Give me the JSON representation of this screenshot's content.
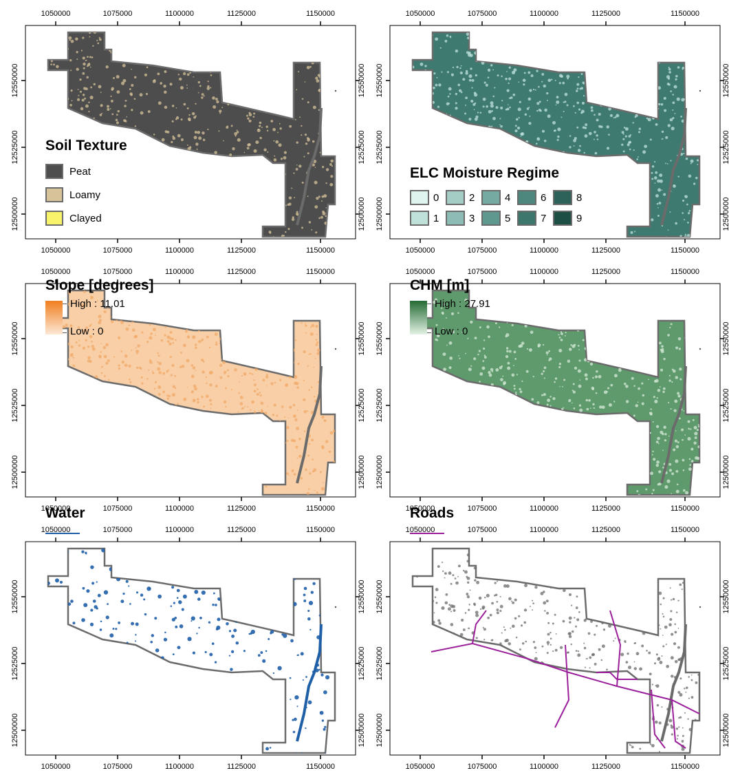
{
  "x_ticks": [
    "1050000",
    "1075000",
    "1100000",
    "1125000",
    "1150000"
  ],
  "y_ticks": [
    "12550000",
    "12525000",
    "12500000"
  ],
  "colors": {
    "boundary": "#6b6b6b",
    "water_line": "#1f5fa8",
    "roads_line": "#9b1f9b"
  },
  "panels": [
    {
      "id": "soil",
      "legend_type": "swatches",
      "title": "Soil Texture",
      "fill": "#4d4d4d",
      "speckle": "#d6c39a",
      "items": [
        {
          "label": "Peat",
          "color": "#4d4d4d"
        },
        {
          "label": "Loamy",
          "color": "#d6c39a"
        },
        {
          "label": "Clayed",
          "color": "#f7f36a"
        }
      ]
    },
    {
      "id": "elc",
      "legend_type": "grid",
      "title": "ELC Moisture Regime",
      "fill": "#3f7a70",
      "speckle": "#bfe3dc",
      "items": [
        {
          "label": "0",
          "color": "#dff3ef"
        },
        {
          "label": "2",
          "color": "#a4cdc5"
        },
        {
          "label": "4",
          "color": "#74aaa1"
        },
        {
          "label": "6",
          "color": "#4e877d"
        },
        {
          "label": "8",
          "color": "#2d6258"
        },
        {
          "label": "1",
          "color": "#c0e1da"
        },
        {
          "label": "3",
          "color": "#8cbcb3"
        },
        {
          "label": "5",
          "color": "#5f988f"
        },
        {
          "label": "7",
          "color": "#3d766b"
        },
        {
          "label": "9",
          "color": "#1d4f45"
        }
      ]
    },
    {
      "id": "slope",
      "legend_type": "ramp",
      "title": "Slope [degrees]",
      "fill": "#f8cfa6",
      "speckle": "#f2a968",
      "high_label": "High : 11.01",
      "low_label": "Low : 0",
      "ramp_high": "#f07f1f",
      "ramp_low": "#fde8d6"
    },
    {
      "id": "chm",
      "legend_type": "ramp",
      "title": "CHM [m]",
      "fill": "#5f9a6c",
      "speckle": "#d5ead8",
      "high_label": "High : 27.91",
      "low_label": "Low : 0",
      "ramp_high": "#246b34",
      "ramp_low": "#e3f2e5"
    },
    {
      "id": "water",
      "legend_type": "line",
      "title": "Water",
      "fill": "#ffffff",
      "speckle": "#1f5fa8",
      "line_color": "#1f5fa8"
    },
    {
      "id": "roads",
      "legend_type": "line",
      "title": "Roads",
      "fill": "#ffffff",
      "speckle": "#6b6b6b",
      "line_color": "#9b1f9b"
    }
  ]
}
